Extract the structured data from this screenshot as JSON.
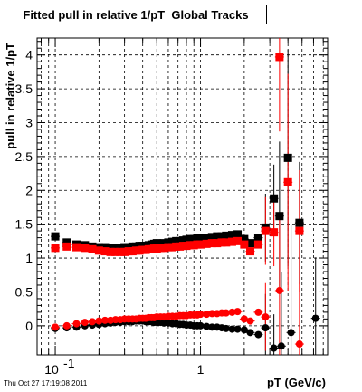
{
  "chart_data": {
    "type": "scatter",
    "title": "Fitted pull in relative 1/pT  Global Tracks",
    "xlabel": "pT (GeV/c)",
    "ylabel": "pull in relative 1/pT",
    "xscale": "log",
    "xlim": [
      0.075,
      7.5
    ],
    "ylim": [
      -0.43,
      4.25
    ],
    "xticks": [
      0.1,
      1
    ],
    "xtick_labels": [
      "10^-1",
      "1"
    ],
    "yticks": [
      0,
      0.5,
      1,
      1.5,
      2,
      2.5,
      3,
      3.5,
      4
    ],
    "ytick_labels": [
      "0",
      "0.5",
      "1",
      "1.5",
      "2",
      "2.5",
      "3",
      "3.5",
      "4"
    ],
    "grid": true,
    "series": [
      {
        "marker": "square",
        "color": "#000000",
        "points": [
          {
            "x": 0.1,
            "y": 1.32
          },
          {
            "x": 0.12,
            "y": 1.23
          },
          {
            "x": 0.14,
            "y": 1.2
          },
          {
            "x": 0.16,
            "y": 1.19
          },
          {
            "x": 0.18,
            "y": 1.17
          },
          {
            "x": 0.2,
            "y": 1.16
          },
          {
            "x": 0.22,
            "y": 1.16
          },
          {
            "x": 0.24,
            "y": 1.15
          },
          {
            "x": 0.26,
            "y": 1.15
          },
          {
            "x": 0.28,
            "y": 1.15
          },
          {
            "x": 0.3,
            "y": 1.16
          },
          {
            "x": 0.32,
            "y": 1.16
          },
          {
            "x": 0.34,
            "y": 1.17
          },
          {
            "x": 0.36,
            "y": 1.17
          },
          {
            "x": 0.38,
            "y": 1.18
          },
          {
            "x": 0.4,
            "y": 1.18
          },
          {
            "x": 0.42,
            "y": 1.18
          },
          {
            "x": 0.44,
            "y": 1.19
          },
          {
            "x": 0.46,
            "y": 1.2
          },
          {
            "x": 0.48,
            "y": 1.21
          },
          {
            "x": 0.5,
            "y": 1.22
          },
          {
            "x": 0.53,
            "y": 1.21
          },
          {
            "x": 0.56,
            "y": 1.22
          },
          {
            "x": 0.6,
            "y": 1.23
          },
          {
            "x": 0.64,
            "y": 1.24
          },
          {
            "x": 0.68,
            "y": 1.25
          },
          {
            "x": 0.72,
            "y": 1.25
          },
          {
            "x": 0.76,
            "y": 1.26
          },
          {
            "x": 0.8,
            "y": 1.27
          },
          {
            "x": 0.85,
            "y": 1.28
          },
          {
            "x": 0.9,
            "y": 1.28
          },
          {
            "x": 0.95,
            "y": 1.29
          },
          {
            "x": 1.0,
            "y": 1.3
          },
          {
            "x": 1.1,
            "y": 1.3
          },
          {
            "x": 1.2,
            "y": 1.31
          },
          {
            "x": 1.3,
            "y": 1.32
          },
          {
            "x": 1.4,
            "y": 1.32
          },
          {
            "x": 1.5,
            "y": 1.33
          },
          {
            "x": 1.65,
            "y": 1.34
          },
          {
            "x": 1.8,
            "y": 1.35
          },
          {
            "x": 2.0,
            "y": 1.28
          },
          {
            "x": 2.2,
            "y": 1.22
          },
          {
            "x": 2.5,
            "y": 1.3
          },
          {
            "x": 2.8,
            "y": 1.45
          },
          {
            "x": 3.2,
            "y": 1.88
          },
          {
            "x": 3.5,
            "y": 1.62
          },
          {
            "x": 4.0,
            "y": 2.48
          },
          {
            "x": 4.8,
            "y": 1.52
          }
        ]
      },
      {
        "marker": "square",
        "color": "#ff0000",
        "points": [
          {
            "x": 0.1,
            "y": 1.15
          },
          {
            "x": 0.12,
            "y": 1.17
          },
          {
            "x": 0.14,
            "y": 1.16
          },
          {
            "x": 0.16,
            "y": 1.15
          },
          {
            "x": 0.18,
            "y": 1.13
          },
          {
            "x": 0.2,
            "y": 1.11
          },
          {
            "x": 0.22,
            "y": 1.1
          },
          {
            "x": 0.24,
            "y": 1.09
          },
          {
            "x": 0.26,
            "y": 1.09
          },
          {
            "x": 0.28,
            "y": 1.09
          },
          {
            "x": 0.3,
            "y": 1.09
          },
          {
            "x": 0.32,
            "y": 1.1
          },
          {
            "x": 0.34,
            "y": 1.1
          },
          {
            "x": 0.36,
            "y": 1.11
          },
          {
            "x": 0.38,
            "y": 1.11
          },
          {
            "x": 0.4,
            "y": 1.12
          },
          {
            "x": 0.42,
            "y": 1.12
          },
          {
            "x": 0.44,
            "y": 1.13
          },
          {
            "x": 0.46,
            "y": 1.13
          },
          {
            "x": 0.48,
            "y": 1.14
          },
          {
            "x": 0.5,
            "y": 1.14
          },
          {
            "x": 0.53,
            "y": 1.15
          },
          {
            "x": 0.56,
            "y": 1.15
          },
          {
            "x": 0.6,
            "y": 1.16
          },
          {
            "x": 0.64,
            "y": 1.16
          },
          {
            "x": 0.68,
            "y": 1.17
          },
          {
            "x": 0.72,
            "y": 1.17
          },
          {
            "x": 0.76,
            "y": 1.18
          },
          {
            "x": 0.8,
            "y": 1.18
          },
          {
            "x": 0.85,
            "y": 1.19
          },
          {
            "x": 0.9,
            "y": 1.19
          },
          {
            "x": 0.95,
            "y": 1.2
          },
          {
            "x": 1.0,
            "y": 1.2
          },
          {
            "x": 1.1,
            "y": 1.21
          },
          {
            "x": 1.2,
            "y": 1.22
          },
          {
            "x": 1.3,
            "y": 1.22
          },
          {
            "x": 1.4,
            "y": 1.23
          },
          {
            "x": 1.5,
            "y": 1.23
          },
          {
            "x": 1.65,
            "y": 1.24
          },
          {
            "x": 1.8,
            "y": 1.25
          },
          {
            "x": 2.0,
            "y": 1.2
          },
          {
            "x": 2.2,
            "y": 1.1
          },
          {
            "x": 2.5,
            "y": 1.2
          },
          {
            "x": 2.8,
            "y": 1.4
          },
          {
            "x": 3.2,
            "y": 1.38
          },
          {
            "x": 3.5,
            "y": 3.97
          },
          {
            "x": 4.0,
            "y": 2.12
          },
          {
            "x": 4.8,
            "y": 1.4
          }
        ]
      },
      {
        "marker": "circle",
        "color": "#000000",
        "points": [
          {
            "x": 0.1,
            "y": -0.04
          },
          {
            "x": 0.12,
            "y": -0.03
          },
          {
            "x": 0.14,
            "y": -0.02
          },
          {
            "x": 0.16,
            "y": 0.0
          },
          {
            "x": 0.18,
            "y": 0.01
          },
          {
            "x": 0.2,
            "y": 0.02
          },
          {
            "x": 0.22,
            "y": 0.03
          },
          {
            "x": 0.24,
            "y": 0.04
          },
          {
            "x": 0.26,
            "y": 0.05
          },
          {
            "x": 0.28,
            "y": 0.05
          },
          {
            "x": 0.3,
            "y": 0.06
          },
          {
            "x": 0.32,
            "y": 0.06
          },
          {
            "x": 0.34,
            "y": 0.06
          },
          {
            "x": 0.36,
            "y": 0.07
          },
          {
            "x": 0.38,
            "y": 0.07
          },
          {
            "x": 0.4,
            "y": 0.07
          },
          {
            "x": 0.42,
            "y": 0.06
          },
          {
            "x": 0.44,
            "y": 0.06
          },
          {
            "x": 0.46,
            "y": 0.06
          },
          {
            "x": 0.48,
            "y": 0.05
          },
          {
            "x": 0.5,
            "y": 0.05
          },
          {
            "x": 0.53,
            "y": 0.05
          },
          {
            "x": 0.56,
            "y": 0.04
          },
          {
            "x": 0.6,
            "y": 0.04
          },
          {
            "x": 0.64,
            "y": 0.03
          },
          {
            "x": 0.68,
            "y": 0.03
          },
          {
            "x": 0.72,
            "y": 0.02
          },
          {
            "x": 0.76,
            "y": 0.02
          },
          {
            "x": 0.8,
            "y": 0.01
          },
          {
            "x": 0.85,
            "y": 0.01
          },
          {
            "x": 0.9,
            "y": 0.0
          },
          {
            "x": 0.95,
            "y": 0.0
          },
          {
            "x": 1.0,
            "y": 0.0
          },
          {
            "x": 1.1,
            "y": -0.01
          },
          {
            "x": 1.2,
            "y": -0.02
          },
          {
            "x": 1.3,
            "y": -0.02
          },
          {
            "x": 1.4,
            "y": -0.03
          },
          {
            "x": 1.5,
            "y": -0.04
          },
          {
            "x": 1.65,
            "y": -0.05
          },
          {
            "x": 1.8,
            "y": -0.05
          },
          {
            "x": 2.0,
            "y": -0.06
          },
          {
            "x": 2.2,
            "y": -0.1
          },
          {
            "x": 2.5,
            "y": -0.13
          },
          {
            "x": 2.8,
            "y": -0.03
          },
          {
            "x": 3.2,
            "y": -0.33
          },
          {
            "x": 3.6,
            "y": -0.3
          },
          {
            "x": 4.2,
            "y": -0.1
          },
          {
            "x": 6.2,
            "y": 0.11
          }
        ]
      },
      {
        "marker": "circle",
        "color": "#ff0000",
        "points": [
          {
            "x": 0.1,
            "y": -0.02
          },
          {
            "x": 0.12,
            "y": 0.0
          },
          {
            "x": 0.14,
            "y": 0.03
          },
          {
            "x": 0.16,
            "y": 0.05
          },
          {
            "x": 0.18,
            "y": 0.06
          },
          {
            "x": 0.2,
            "y": 0.07
          },
          {
            "x": 0.22,
            "y": 0.08
          },
          {
            "x": 0.24,
            "y": 0.08
          },
          {
            "x": 0.26,
            "y": 0.09
          },
          {
            "x": 0.28,
            "y": 0.09
          },
          {
            "x": 0.3,
            "y": 0.1
          },
          {
            "x": 0.32,
            "y": 0.1
          },
          {
            "x": 0.34,
            "y": 0.1
          },
          {
            "x": 0.36,
            "y": 0.1
          },
          {
            "x": 0.38,
            "y": 0.11
          },
          {
            "x": 0.4,
            "y": 0.11
          },
          {
            "x": 0.42,
            "y": 0.11
          },
          {
            "x": 0.44,
            "y": 0.12
          },
          {
            "x": 0.46,
            "y": 0.12
          },
          {
            "x": 0.48,
            "y": 0.12
          },
          {
            "x": 0.5,
            "y": 0.13
          },
          {
            "x": 0.53,
            "y": 0.13
          },
          {
            "x": 0.56,
            "y": 0.13
          },
          {
            "x": 0.6,
            "y": 0.14
          },
          {
            "x": 0.64,
            "y": 0.14
          },
          {
            "x": 0.68,
            "y": 0.14
          },
          {
            "x": 0.72,
            "y": 0.15
          },
          {
            "x": 0.76,
            "y": 0.15
          },
          {
            "x": 0.8,
            "y": 0.15
          },
          {
            "x": 0.85,
            "y": 0.16
          },
          {
            "x": 0.9,
            "y": 0.16
          },
          {
            "x": 0.95,
            "y": 0.16
          },
          {
            "x": 1.0,
            "y": 0.17
          },
          {
            "x": 1.1,
            "y": 0.17
          },
          {
            "x": 1.2,
            "y": 0.18
          },
          {
            "x": 1.3,
            "y": 0.18
          },
          {
            "x": 1.4,
            "y": 0.19
          },
          {
            "x": 1.5,
            "y": 0.19
          },
          {
            "x": 1.65,
            "y": 0.2
          },
          {
            "x": 1.8,
            "y": 0.21
          },
          {
            "x": 2.0,
            "y": 0.1
          },
          {
            "x": 2.2,
            "y": 0.07
          },
          {
            "x": 2.5,
            "y": 0.2
          },
          {
            "x": 2.8,
            "y": 0.13
          },
          {
            "x": 3.5,
            "y": 0.52
          },
          {
            "x": 4.8,
            "y": -0.27
          }
        ]
      }
    ]
  },
  "footer_text": "Thu Oct 27 17:19:08 2011"
}
